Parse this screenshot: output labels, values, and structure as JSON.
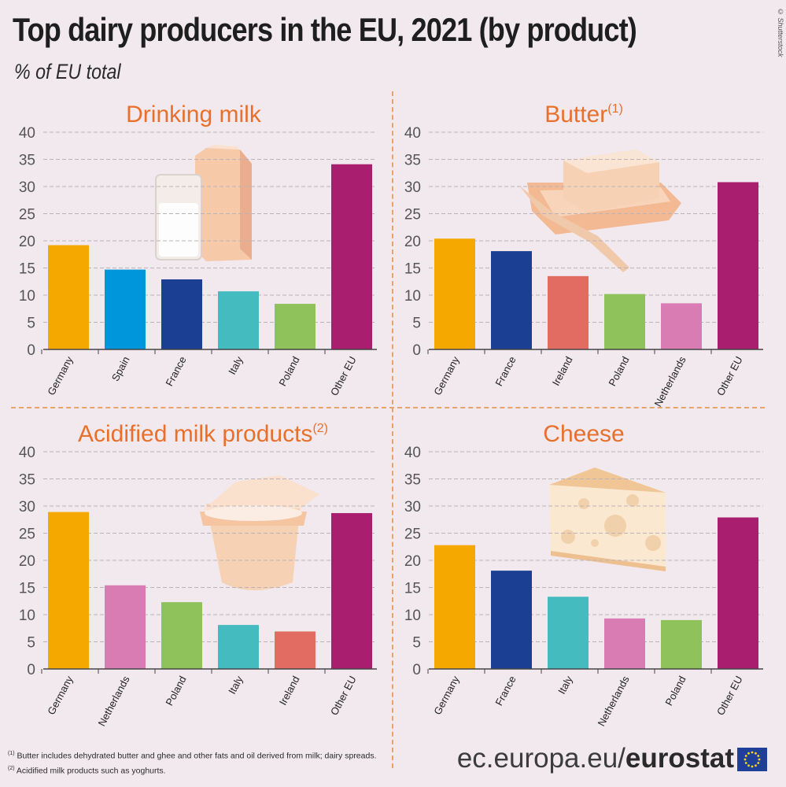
{
  "header": {
    "title": "Top dairy producers in the EU, 2021 (by product)",
    "subtitle": "% of EU total",
    "credit": "© Shutterstock"
  },
  "footnotes": [
    {
      "mark": "(1)",
      "text": "Butter includes dehydrated butter and ghee and other fats and oil derived from milk; dairy spreads."
    },
    {
      "mark": "(2)",
      "text": "Acidified milk products such as yoghurts."
    }
  ],
  "brand": {
    "prefix": "ec.europa.eu/",
    "name": "eurostat"
  },
  "colors": {
    "title_orange": "#e8702a",
    "grid": "#b9b3b7",
    "text": "#333333",
    "Germany": "#f5a800",
    "Spain": "#0096db",
    "France": "#1a3f93",
    "Italy": "#44bcbf",
    "Poland": "#8fc25a",
    "Other EU": "#a91e6e",
    "Ireland": "#e26c62",
    "Netherlands": "#d87cb3"
  },
  "chart_data": [
    {
      "type": "bar",
      "title": "Drinking milk",
      "title_note": "",
      "categories": [
        "Germany",
        "Spain",
        "France",
        "Italy",
        "Poland",
        "Other EU"
      ],
      "values": [
        19.2,
        14.7,
        12.9,
        10.7,
        8.4,
        34.1
      ],
      "ylim": [
        0,
        40
      ],
      "yticks": [
        0,
        5,
        10,
        15,
        20,
        25,
        30,
        35,
        40
      ],
      "xlabel": "",
      "ylabel": "% of EU total",
      "grid": true
    },
    {
      "type": "bar",
      "title": "Butter",
      "title_note": "(1)",
      "categories": [
        "Germany",
        "France",
        "Ireland",
        "Poland",
        "Netherlands",
        "Other EU"
      ],
      "values": [
        20.4,
        18.1,
        13.5,
        10.2,
        8.5,
        30.8
      ],
      "ylim": [
        0,
        40
      ],
      "yticks": [
        0,
        5,
        10,
        15,
        20,
        25,
        30,
        35,
        40
      ],
      "xlabel": "",
      "ylabel": "% of EU total",
      "grid": true
    },
    {
      "type": "bar",
      "title": "Acidified milk products",
      "title_note": "(2)",
      "categories": [
        "Germany",
        "Netherlands",
        "Poland",
        "Italy",
        "Ireland",
        "Other EU"
      ],
      "values": [
        28.9,
        15.4,
        12.3,
        8.1,
        6.9,
        28.7
      ],
      "ylim": [
        0,
        40
      ],
      "yticks": [
        0,
        5,
        10,
        15,
        20,
        25,
        30,
        35,
        40
      ],
      "xlabel": "",
      "ylabel": "% of EU total",
      "grid": true
    },
    {
      "type": "bar",
      "title": "Cheese",
      "title_note": "",
      "categories": [
        "Germany",
        "France",
        "Italy",
        "Netherlands",
        "Poland",
        "Other EU"
      ],
      "values": [
        22.8,
        18.1,
        13.3,
        9.3,
        9.0,
        27.9
      ],
      "ylim": [
        0,
        40
      ],
      "yticks": [
        0,
        5,
        10,
        15,
        20,
        25,
        30,
        35,
        40
      ],
      "xlabel": "",
      "ylabel": "% of EU total",
      "grid": true
    }
  ]
}
